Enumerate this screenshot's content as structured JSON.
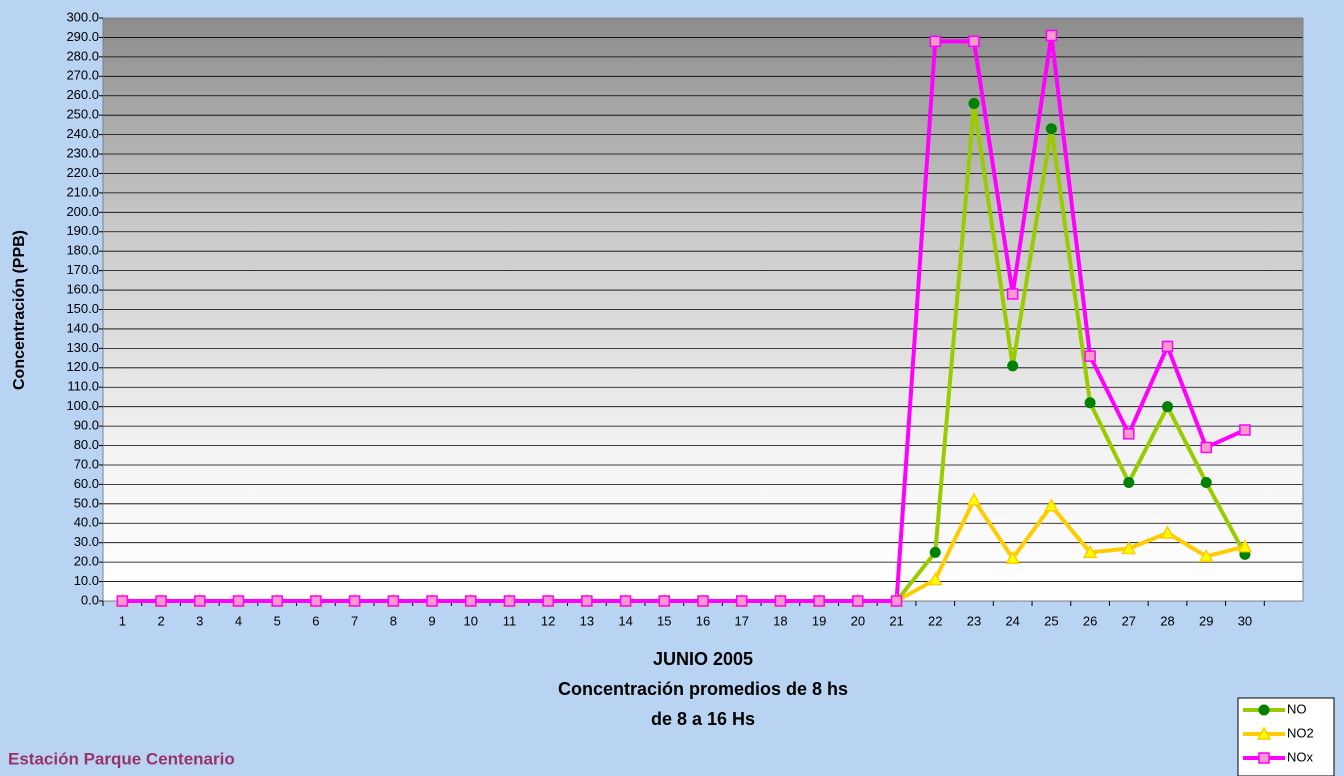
{
  "chart_data": {
    "type": "line",
    "title": "JUNIO 2005",
    "subtitle": [
      "Concentración promedios de 8 hs",
      "de 8 a 16 Hs"
    ],
    "ylabel": "Concentración (PPB)",
    "annotation": "Estación Parque Centenario",
    "categories": [
      "1",
      "2",
      "3",
      "4",
      "5",
      "6",
      "7",
      "8",
      "9",
      "10",
      "11",
      "12",
      "13",
      "14",
      "15",
      "16",
      "17",
      "18",
      "19",
      "20",
      "21",
      "22",
      "23",
      "24",
      "25",
      "26",
      "27",
      "28",
      "29",
      "30",
      null
    ],
    "series": [
      {
        "name": "NO",
        "color": "#99cc00",
        "marker": "circle",
        "marker_color": "#008000",
        "values": [
          0,
          0,
          0,
          0,
          0,
          0,
          0,
          0,
          0,
          0,
          0,
          0,
          0,
          0,
          0,
          0,
          0,
          0,
          0,
          0,
          0,
          25,
          256,
          121,
          243,
          102,
          61,
          100,
          61,
          24,
          null
        ]
      },
      {
        "name": "NO2",
        "color": "#ffcc00",
        "marker": "triangle",
        "marker_color": "#ffff00",
        "values": [
          0,
          0,
          0,
          0,
          0,
          0,
          0,
          0,
          0,
          0,
          0,
          0,
          0,
          0,
          0,
          0,
          0,
          0,
          0,
          0,
          0,
          11,
          52,
          22,
          49,
          25,
          27,
          35,
          23,
          28,
          null
        ]
      },
      {
        "name": "NOx",
        "color": "#ff00ff",
        "marker": "square",
        "marker_color": "#ff99cc",
        "values": [
          0,
          0,
          0,
          0,
          0,
          0,
          0,
          0,
          0,
          0,
          0,
          0,
          0,
          0,
          0,
          0,
          0,
          0,
          0,
          0,
          0,
          288,
          288,
          158,
          291,
          126,
          86,
          131,
          79,
          88,
          null
        ]
      }
    ],
    "ylim": [
      0,
      300
    ],
    "yticks": [
      {
        "value": 0,
        "label": "0.0"
      },
      {
        "value": 10,
        "label": "10.0"
      },
      {
        "value": 20,
        "label": "20.0"
      },
      {
        "value": 30,
        "label": "30.0"
      },
      {
        "value": 40,
        "label": "40.0"
      },
      {
        "value": 50,
        "label": "50.0"
      },
      {
        "value": 60,
        "label": "60.0"
      },
      {
        "value": 70,
        "label": "70.0"
      },
      {
        "value": 80,
        "label": "80.0"
      },
      {
        "value": 90,
        "label": "90.0"
      },
      {
        "value": 100,
        "label": "100.0"
      },
      {
        "value": 110,
        "label": "110.0"
      },
      {
        "value": 120,
        "label": "120.0"
      },
      {
        "value": 130,
        "label": "130.0"
      },
      {
        "value": 140,
        "label": "140.0"
      },
      {
        "value": 150,
        "label": "150.0"
      },
      {
        "value": 160,
        "label": "160.0"
      },
      {
        "value": 170,
        "label": "170.0"
      },
      {
        "value": 180,
        "label": "180.0"
      },
      {
        "value": 190,
        "label": "190.0"
      },
      {
        "value": 200,
        "label": "200.0"
      },
      {
        "value": 210,
        "label": "210.0"
      },
      {
        "value": 220,
        "label": "220.0"
      },
      {
        "value": 230,
        "label": "230.0"
      },
      {
        "value": 240,
        "label": "240.0"
      },
      {
        "value": 250,
        "label": "250.0"
      },
      {
        "value": 260,
        "label": "260.0"
      },
      {
        "value": 270,
        "label": "270.0"
      },
      {
        "value": 280,
        "label": "280.0"
      },
      {
        "value": 290,
        "label": "290.0"
      },
      {
        "value": 300,
        "label": "300.0"
      }
    ],
    "grid": true,
    "legend": "bottom-right"
  }
}
